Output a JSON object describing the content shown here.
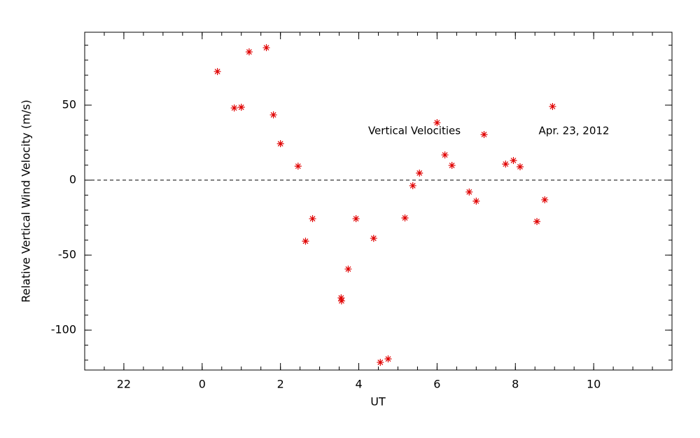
{
  "chart_data": {
    "type": "scatter",
    "x_label": "UT",
    "y_label": "Relative Vertical Wind Velocity (m/s)",
    "annotations": [
      "Vertical Velocities",
      "Apr. 23, 2012"
    ],
    "xlim": [
      -3,
      12
    ],
    "ylim": [
      -126.6,
      98.6
    ],
    "xticks": [
      {
        "value": -2,
        "label": "22"
      },
      0,
      2,
      4,
      6,
      8,
      10
    ],
    "yticks": [
      -100,
      -50,
      0,
      50
    ],
    "x_minor_step": 0.5,
    "y_minor_step": 10,
    "reference_line": 0,
    "series": [
      {
        "color": "#e00000",
        "x": [
          0.39,
          0.82,
          1.0,
          1.2,
          1.64,
          1.82,
          2.0,
          2.45,
          2.64,
          2.82,
          3.55,
          3.56,
          3.73,
          3.93,
          4.38,
          4.55,
          4.75,
          5.18,
          5.38,
          5.55,
          6.0,
          6.2,
          6.38,
          6.82,
          7.0,
          7.2,
          7.75,
          7.95,
          8.12,
          8.55,
          8.75,
          8.95
        ],
        "values": [
          72.4,
          48.1,
          48.6,
          85.5,
          88.3,
          43.5,
          24.3,
          9.3,
          -40.7,
          -25.7,
          -78.5,
          -80.5,
          -59.3,
          -25.7,
          -38.8,
          -121.5,
          -119.2,
          -25.2,
          -3.7,
          4.7,
          38.3,
          16.8,
          9.8,
          -7.9,
          -14.0,
          30.4,
          10.7,
          13.1,
          8.9,
          -27.6,
          -13.1,
          49.1
        ]
      }
    ]
  }
}
